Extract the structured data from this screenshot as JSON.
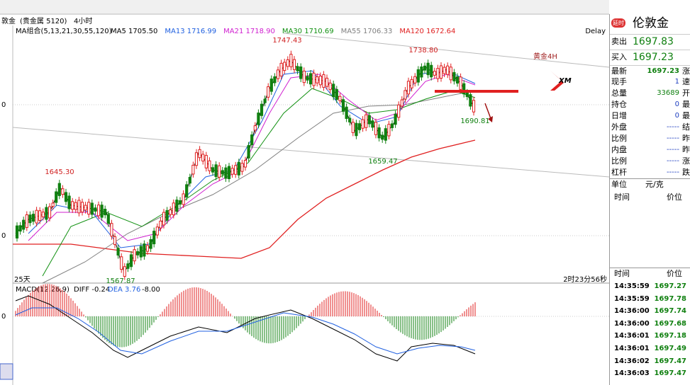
{
  "header": {
    "symbol": "敦金",
    "market": "(贵金属 5120)",
    "period": "4小时"
  },
  "ma_legend": {
    "label": "MA组合(5,13,21,30,55,120)",
    "items": [
      {
        "text": "MA5 1705.50",
        "color": "#000000"
      },
      {
        "text": "MA13 1716.99",
        "color": "#2060e0"
      },
      {
        "text": "MA21 1718.90",
        "color": "#d020d0"
      },
      {
        "text": "MA30 1710.69",
        "color": "#109010"
      },
      {
        "text": "MA55 1706.33",
        "color": "#808080"
      },
      {
        "text": "MA120 1672.64",
        "color": "#e02020"
      }
    ],
    "delay": "Delay"
  },
  "price_labels": [
    "1747.43",
    "1738.80",
    "1645.30",
    "1659.47",
    "1690.81",
    "1567.87"
  ],
  "left_marks": [
    "0",
    "0",
    "0"
  ],
  "overlay": {
    "title": "黄金4H",
    "logo": "XM"
  },
  "footer": {
    "bars": "25天",
    "countdown": "2时23分56秒"
  },
  "macd": {
    "label": "MACD(12,26,9)",
    "diff": "DIFF -0.24",
    "dea": "DEA 3.76",
    "value": "-8.00"
  },
  "quote": {
    "name": "伦敦金",
    "badge": "延时",
    "sell_label": "卖出",
    "sell": "1697.83",
    "buy_label": "买入",
    "buy": "1697.23",
    "rows": [
      [
        "最新",
        "1697.23",
        "涨"
      ],
      [
        "现手",
        "1",
        "速"
      ],
      [
        "总量",
        "33689",
        "开"
      ],
      [
        "持仓",
        "0",
        "最"
      ],
      [
        "日增",
        "0",
        "最"
      ],
      [
        "外盘",
        "-----",
        "结"
      ],
      [
        "比例",
        "-----",
        "昨"
      ],
      [
        "内盘",
        "-----",
        "昨"
      ],
      [
        "比例",
        "-----",
        "涨"
      ],
      [
        "杠杆",
        "-----",
        "跌"
      ]
    ],
    "unit_label": "单位",
    "unit": "元/克",
    "time_header": "时间",
    "price_header": "价位"
  },
  "trades": {
    "time_header": "时间",
    "price_header": "价位",
    "rows": [
      [
        "14:35:59",
        "1697.27"
      ],
      [
        "14:35:59",
        "1697.78"
      ],
      [
        "14:36:00",
        "1697.74"
      ],
      [
        "14:36:00",
        "1697.68"
      ],
      [
        "14:36:01",
        "1697.18"
      ],
      [
        "14:36:01",
        "1697.49"
      ],
      [
        "14:36:02",
        "1697.47"
      ],
      [
        "14:36:03",
        "1697.47"
      ]
    ]
  }
}
